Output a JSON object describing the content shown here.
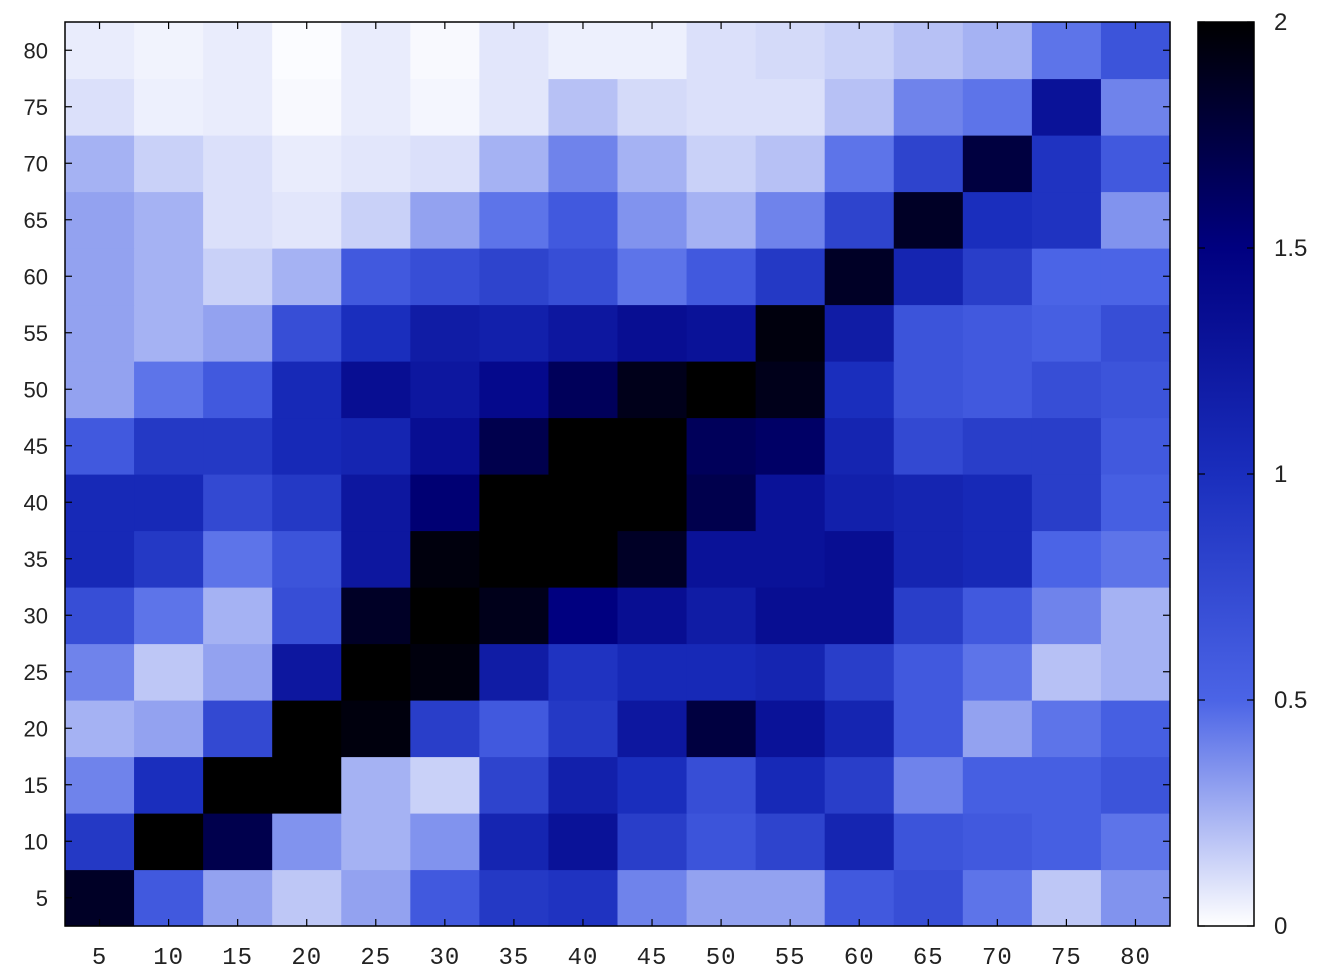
{
  "chart_data": {
    "type": "heatmap",
    "title": "",
    "xlabel": "",
    "ylabel": "",
    "x": [
      5,
      10,
      15,
      20,
      25,
      30,
      35,
      40,
      45,
      50,
      55,
      60,
      65,
      70,
      75,
      80
    ],
    "y": [
      5,
      10,
      15,
      20,
      25,
      30,
      35,
      40,
      45,
      50,
      55,
      60,
      65,
      70,
      75,
      80
    ],
    "x_tick_labels": [
      "5",
      "10",
      "15",
      "20",
      "25",
      "30",
      "35",
      "40",
      "45",
      "50",
      "55",
      "60",
      "65",
      "70",
      "75",
      "80"
    ],
    "y_tick_labels": [
      "5",
      "10",
      "15",
      "20",
      "25",
      "30",
      "35",
      "40",
      "45",
      "50",
      "55",
      "60",
      "65",
      "70",
      "75",
      "80"
    ],
    "zlim": [
      0,
      2
    ],
    "colorbar": {
      "ticks": [
        0,
        0.5,
        1,
        1.5,
        2
      ],
      "tick_labels": [
        "0",
        "0.5",
        "1",
        "1.5",
        "2"
      ],
      "placement": "right"
    },
    "colormap": [
      "#ffffff",
      "#4b64e6",
      "#1a2ebd",
      "#000080",
      "#000000"
    ],
    "grid": false,
    "note_rows": "values[i] is the row at y[i] (bottom to top), columns follow x",
    "values": [
      [
        1.85,
        0.6,
        0.3,
        0.18,
        0.3,
        0.6,
        0.9,
        0.95,
        0.4,
        0.3,
        0.3,
        0.6,
        0.7,
        0.45,
        0.18,
        0.35
      ],
      [
        0.9,
        2.0,
        1.7,
        0.35,
        0.25,
        0.35,
        1.1,
        1.3,
        0.85,
        0.65,
        0.8,
        1.1,
        0.65,
        0.6,
        0.55,
        0.45
      ],
      [
        0.4,
        1.0,
        2.0,
        2.0,
        0.25,
        0.15,
        0.8,
        1.15,
        1.0,
        0.7,
        1.05,
        0.85,
        0.4,
        0.55,
        0.55,
        0.65
      ],
      [
        0.25,
        0.3,
        0.75,
        2.0,
        1.95,
        0.85,
        0.6,
        0.9,
        1.25,
        1.75,
        1.3,
        1.1,
        0.6,
        0.3,
        0.45,
        0.55
      ],
      [
        0.4,
        0.18,
        0.3,
        1.25,
        2.0,
        1.95,
        1.2,
        0.95,
        1.05,
        1.05,
        1.1,
        0.85,
        0.6,
        0.45,
        0.2,
        0.25
      ],
      [
        0.7,
        0.45,
        0.25,
        0.7,
        1.85,
        2.0,
        1.9,
        1.5,
        1.35,
        1.2,
        1.35,
        1.35,
        0.85,
        0.6,
        0.4,
        0.25
      ],
      [
        1.05,
        0.9,
        0.45,
        0.65,
        1.25,
        1.95,
        2.0,
        2.0,
        1.85,
        1.3,
        1.3,
        1.35,
        1.1,
        1.05,
        0.5,
        0.45
      ],
      [
        1.05,
        1.05,
        0.75,
        0.9,
        1.25,
        1.55,
        2.0,
        2.0,
        2.0,
        1.7,
        1.3,
        1.15,
        1.1,
        1.05,
        0.85,
        0.55
      ],
      [
        0.6,
        0.9,
        0.9,
        1.05,
        1.1,
        1.35,
        1.7,
        2.0,
        2.0,
        1.65,
        1.6,
        1.1,
        0.75,
        0.85,
        0.85,
        0.6
      ],
      [
        0.3,
        0.45,
        0.6,
        1.05,
        1.35,
        1.25,
        1.4,
        1.65,
        1.9,
        2.0,
        1.9,
        1.0,
        0.65,
        0.6,
        0.7,
        0.65
      ],
      [
        0.3,
        0.25,
        0.3,
        0.7,
        1.0,
        1.2,
        1.15,
        1.25,
        1.35,
        1.3,
        1.95,
        1.2,
        0.65,
        0.6,
        0.55,
        0.7
      ],
      [
        0.3,
        0.25,
        0.15,
        0.25,
        0.6,
        0.7,
        0.8,
        0.7,
        0.45,
        0.6,
        0.9,
        1.85,
        1.1,
        0.85,
        0.5,
        0.5
      ],
      [
        0.3,
        0.25,
        0.1,
        0.08,
        0.15,
        0.3,
        0.45,
        0.6,
        0.35,
        0.25,
        0.4,
        0.8,
        1.85,
        1.0,
        0.95,
        0.35
      ],
      [
        0.25,
        0.15,
        0.1,
        0.06,
        0.08,
        0.1,
        0.25,
        0.4,
        0.25,
        0.15,
        0.2,
        0.45,
        0.8,
        1.75,
        0.95,
        0.6
      ],
      [
        0.1,
        0.05,
        0.06,
        0.02,
        0.06,
        0.03,
        0.08,
        0.2,
        0.12,
        0.1,
        0.1,
        0.2,
        0.4,
        0.45,
        1.3,
        0.4
      ],
      [
        0.06,
        0.04,
        0.06,
        0.01,
        0.06,
        0.02,
        0.08,
        0.05,
        0.05,
        0.1,
        0.12,
        0.15,
        0.2,
        0.25,
        0.45,
        0.65
      ]
    ]
  }
}
